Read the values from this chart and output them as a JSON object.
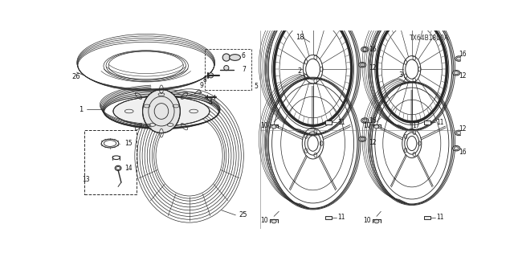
{
  "bg_color": "#ffffff",
  "diagram_code": "TX64B1800A",
  "gray": "#2a2a2a",
  "lgray": "#777777"
}
